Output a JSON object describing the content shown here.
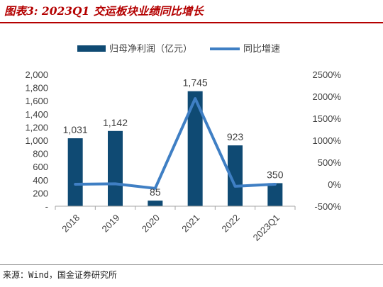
{
  "figure": {
    "title": "图表3: 2023Q1 交运板块业绩同比增长",
    "source": "来源：Wind，国金证券研究所"
  },
  "chart_data": {
    "type": "bar+line",
    "categories": [
      "2018",
      "2019",
      "2020",
      "2021",
      "2022",
      "2023Q1"
    ],
    "series": [
      {
        "name": "归母净利润（亿元）",
        "type": "bar",
        "axis": "left",
        "values": [
          1031,
          1142,
          85,
          1745,
          923,
          350
        ],
        "labels": [
          "1,031",
          "1,142",
          "85",
          "1,745",
          "923",
          "350"
        ],
        "color": "#0f4a73"
      },
      {
        "name": "同比增速",
        "type": "line",
        "axis": "right",
        "values": [
          0,
          10,
          -93,
          1950,
          -47,
          0
        ],
        "color": "#3f7fc4"
      }
    ],
    "y_left": {
      "ylim": [
        0,
        2000
      ],
      "ticks": [
        0,
        200,
        400,
        600,
        800,
        1000,
        1200,
        1400,
        1600,
        1800,
        2000
      ],
      "tick_labels": [
        "-",
        "200",
        "400",
        "600",
        "800",
        "1,000",
        "1,200",
        "1,400",
        "1,600",
        "1,800",
        "2,000"
      ]
    },
    "y_right": {
      "ylim": [
        -500,
        2500
      ],
      "ticks": [
        -500,
        0,
        500,
        1000,
        1500,
        2000,
        2500
      ],
      "tick_labels": [
        "-500%",
        "0%",
        "500%",
        "1000%",
        "1500%",
        "2000%",
        "2500%"
      ]
    },
    "legend": {
      "placement": "top-center"
    },
    "grid": false
  }
}
